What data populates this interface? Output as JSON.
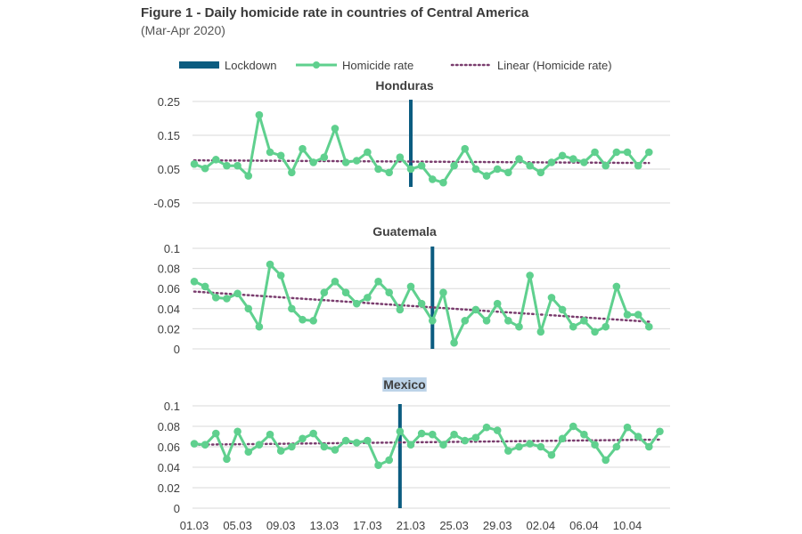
{
  "title": "Figure 1 - Daily homicide rate in countries of Central America",
  "subtitle": "(Mar-Apr 2020)",
  "legend": {
    "lockdown": "Lockdown",
    "homicide": "Homicide rate",
    "linear": "Linear (Homicide rate)"
  },
  "colors": {
    "homicide": "#5fd08e",
    "lockdown": "#0b5c80",
    "trend": "#7a3d6e"
  },
  "x_tick_labels": [
    "01.03",
    "05.03",
    "09.03",
    "13.03",
    "17.03",
    "21.03",
    "25.03",
    "29.03",
    "02.04",
    "06.04",
    "10.04"
  ],
  "chart_data": [
    {
      "type": "line",
      "title": "Honduras",
      "x_start": "2020-03-01",
      "ylim": [
        -0.05,
        0.25
      ],
      "y_ticks": [
        -0.05,
        0.05,
        0.15,
        0.25
      ],
      "y_tick_labels": [
        "-0.05",
        "0.05",
        "0.15",
        "0.25"
      ],
      "lockdown_date": "2020-03-21",
      "trend": {
        "start": 0.076,
        "end": 0.068
      },
      "series": [
        {
          "name": "Homicide rate",
          "values": [
            0.065,
            0.052,
            0.078,
            0.06,
            0.06,
            0.03,
            0.21,
            0.1,
            0.09,
            0.04,
            0.11,
            0.07,
            0.085,
            0.17,
            0.07,
            0.075,
            0.1,
            0.05,
            0.04,
            0.085,
            0.05,
            0.06,
            0.02,
            0.01,
            0.06,
            0.11,
            0.05,
            0.03,
            0.05,
            0.04,
            0.08,
            0.06,
            0.04,
            0.07,
            0.09,
            0.08,
            0.07,
            0.1,
            0.06,
            0.1,
            0.1,
            0.06,
            0.1
          ]
        }
      ]
    },
    {
      "type": "line",
      "title": "Guatemala",
      "x_start": "2020-03-01",
      "ylim": [
        0,
        0.1
      ],
      "y_ticks": [
        0,
        0.02,
        0.04,
        0.06,
        0.08,
        0.1
      ],
      "y_tick_labels": [
        "0",
        "0.02",
        "0.04",
        "0.06",
        "0.08",
        "0.1"
      ],
      "lockdown_date": "2020-03-23",
      "trend": {
        "start": 0.057,
        "end": 0.027
      },
      "series": [
        {
          "name": "Homicide rate",
          "values": [
            0.067,
            0.062,
            0.051,
            0.05,
            0.055,
            0.04,
            0.022,
            0.084,
            0.073,
            0.04,
            0.029,
            0.028,
            0.056,
            0.067,
            0.056,
            0.045,
            0.051,
            0.067,
            0.056,
            0.039,
            0.062,
            0.045,
            0.028,
            0.056,
            0.006,
            0.028,
            0.039,
            0.028,
            0.045,
            0.028,
            0.022,
            0.073,
            0.017,
            0.051,
            0.039,
            0.022,
            0.028,
            0.017,
            0.022,
            0.062,
            0.034,
            0.034,
            0.022
          ]
        }
      ]
    },
    {
      "type": "line",
      "title": "Mexico",
      "x_start": "2020-03-01",
      "ylim": [
        0,
        0.1
      ],
      "y_ticks": [
        0,
        0.02,
        0.04,
        0.06,
        0.08,
        0.1
      ],
      "y_tick_labels": [
        "0",
        "0.02",
        "0.04",
        "0.06",
        "0.08",
        "0.1"
      ],
      "lockdown_date": "2020-03-20",
      "trend": {
        "start": 0.062,
        "end": 0.067
      },
      "series": [
        {
          "name": "Homicide rate",
          "values": [
            0.063,
            0.062,
            0.073,
            0.048,
            0.075,
            0.055,
            0.062,
            0.072,
            0.056,
            0.06,
            0.068,
            0.073,
            0.06,
            0.057,
            0.066,
            0.064,
            0.066,
            0.042,
            0.047,
            0.075,
            0.062,
            0.073,
            0.072,
            0.062,
            0.072,
            0.066,
            0.069,
            0.079,
            0.076,
            0.056,
            0.06,
            0.063,
            0.06,
            0.052,
            0.068,
            0.08,
            0.072,
            0.062,
            0.047,
            0.06,
            0.079,
            0.07,
            0.06,
            0.075
          ]
        }
      ]
    }
  ]
}
